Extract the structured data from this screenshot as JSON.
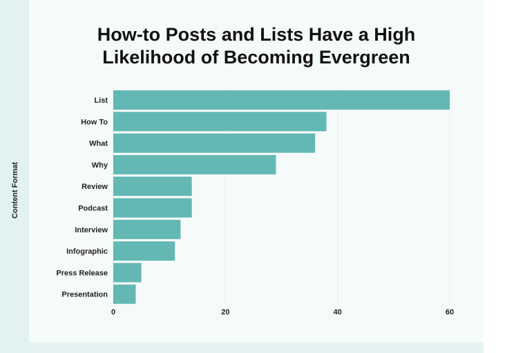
{
  "title_lines": [
    "How-to Posts and Lists Have a High",
    "Likelihood of Becoming Evergreen"
  ],
  "chart_data": {
    "type": "bar",
    "orientation": "horizontal",
    "title": "How-to Posts and Lists Have a High Likelihood of Becoming Evergreen",
    "xlabel": "",
    "ylabel": "Content Format",
    "categories": [
      "List",
      "How To",
      "What",
      "Why",
      "Review",
      "Podcast",
      "Interview",
      "Infographic",
      "Press Release",
      "Presentation"
    ],
    "values": [
      60,
      38,
      36,
      29,
      14,
      14,
      12,
      11,
      5,
      4
    ],
    "xlim": [
      0,
      60
    ],
    "xticks": [
      0,
      20,
      40,
      60
    ],
    "grid": "vertical",
    "bar_color": "#63b8b4",
    "grid_color": "#e6ecec"
  }
}
